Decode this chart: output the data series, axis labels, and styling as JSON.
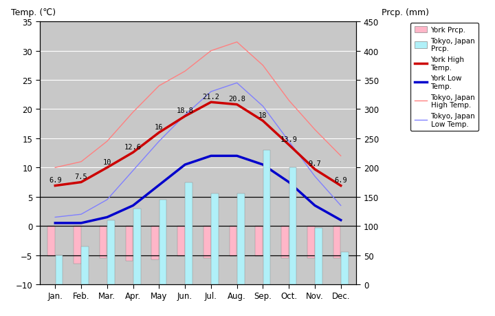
{
  "months": [
    "Jan.",
    "Feb.",
    "Mar.",
    "Apr.",
    "May",
    "Jun.",
    "Jul.",
    "Aug.",
    "Sep.",
    "Oct.",
    "Nov.",
    "Dec."
  ],
  "york_high": [
    6.9,
    7.5,
    10.0,
    12.6,
    16.0,
    18.8,
    21.2,
    20.8,
    18.0,
    13.9,
    9.7,
    6.9
  ],
  "york_low": [
    0.5,
    0.5,
    1.5,
    3.5,
    7.0,
    10.5,
    12.0,
    12.0,
    10.5,
    7.5,
    3.5,
    1.0
  ],
  "tokyo_high": [
    10.0,
    11.0,
    14.5,
    19.5,
    24.0,
    26.5,
    30.0,
    31.5,
    27.5,
    21.5,
    16.5,
    12.0
  ],
  "tokyo_low": [
    1.5,
    2.0,
    4.5,
    9.5,
    14.5,
    19.0,
    23.0,
    24.5,
    20.5,
    14.5,
    8.5,
    3.5
  ],
  "tokyo_prcp_mm": [
    50,
    65,
    110,
    130,
    145,
    175,
    155,
    155,
    230,
    200,
    97,
    55
  ],
  "york_prcp_neg": [
    -5.2,
    -6.5,
    -5.5,
    -6.0,
    -5.8,
    -5.2,
    -5.5,
    -5.2,
    -5.2,
    -5.5,
    -5.5,
    -5.5
  ],
  "background_color": "#c8c8c8",
  "york_high_color": "#cc0000",
  "york_low_color": "#0000cc",
  "tokyo_high_color": "#ff8080",
  "tokyo_low_color": "#8080ff",
  "york_prcp_color": "#ffb6c8",
  "tokyo_prcp_color": "#b0f0f8",
  "grid_color": "#ffffff",
  "hline_color": "#000000",
  "title_left": "Temp. (℃)",
  "title_right": "Prcp. (mm)",
  "ylim_left": [
    -10,
    35
  ],
  "ylim_right": [
    0,
    450
  ],
  "yticks_left": [
    -10,
    -5,
    0,
    5,
    10,
    15,
    20,
    25,
    30,
    35
  ],
  "yticks_right": [
    0,
    50,
    100,
    150,
    200,
    250,
    300,
    350,
    400,
    450
  ],
  "york_high_labels": [
    "6.9",
    "7.5",
    "10",
    "12.6",
    "16",
    "18.8",
    "21.2",
    "20.8",
    "18",
    "13.9",
    "9.7",
    "6.9"
  ]
}
